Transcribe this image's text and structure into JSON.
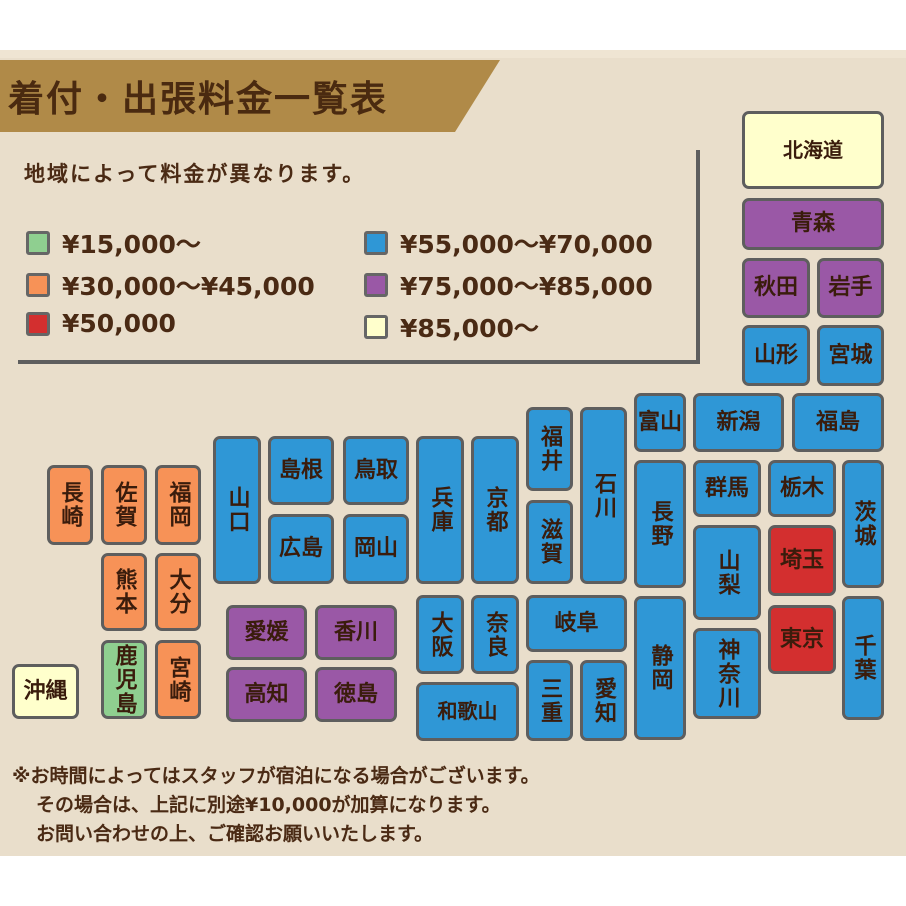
{
  "title": "着付・出張料金一覧表",
  "legend": {
    "note": "地域によって料金が異なります。",
    "items": [
      {
        "label": "¥15,000〜",
        "color": "#8fcf90"
      },
      {
        "label": "¥30,000〜¥45,000",
        "color": "#f79257"
      },
      {
        "label": "¥50,000",
        "color": "#d32f2f"
      },
      {
        "label": "¥55,000〜¥70,000",
        "color": "#2f97d6"
      },
      {
        "label": "¥75,000〜¥85,000",
        "color": "#9a58a6"
      },
      {
        "label": "¥85,000〜",
        "color": "#ffffcc"
      }
    ]
  },
  "prefectures": [
    {
      "name": "北海道",
      "tier": 5
    },
    {
      "name": "青森",
      "tier": 4
    },
    {
      "name": "秋田",
      "tier": 4
    },
    {
      "name": "岩手",
      "tier": 4
    },
    {
      "name": "山形",
      "tier": 3
    },
    {
      "name": "宮城",
      "tier": 3
    },
    {
      "name": "富山",
      "tier": 3
    },
    {
      "name": "新潟",
      "tier": 3
    },
    {
      "name": "福島",
      "tier": 3
    },
    {
      "name": "長野",
      "tier": 3
    },
    {
      "name": "群馬",
      "tier": 3
    },
    {
      "name": "栃木",
      "tier": 3
    },
    {
      "name": "茨城",
      "tier": 3
    },
    {
      "name": "山梨",
      "tier": 3
    },
    {
      "name": "埼玉",
      "tier": 2
    },
    {
      "name": "静岡",
      "tier": 3
    },
    {
      "name": "神奈川",
      "tier": 3
    },
    {
      "name": "東京",
      "tier": 2
    },
    {
      "name": "千葉",
      "tier": 3
    },
    {
      "name": "福井",
      "tier": 3
    },
    {
      "name": "石川",
      "tier": 3
    },
    {
      "name": "滋賀",
      "tier": 3
    },
    {
      "name": "兵庫",
      "tier": 3
    },
    {
      "name": "京都",
      "tier": 3
    },
    {
      "name": "大阪",
      "tier": 3
    },
    {
      "name": "奈良",
      "tier": 3
    },
    {
      "name": "和歌山",
      "tier": 3
    },
    {
      "name": "岐阜",
      "tier": 3
    },
    {
      "name": "三重",
      "tier": 3
    },
    {
      "name": "愛知",
      "tier": 3
    },
    {
      "name": "山口",
      "tier": 3
    },
    {
      "name": "島根",
      "tier": 3
    },
    {
      "name": "鳥取",
      "tier": 3
    },
    {
      "name": "広島",
      "tier": 3
    },
    {
      "name": "岡山",
      "tier": 3
    },
    {
      "name": "愛媛",
      "tier": 4
    },
    {
      "name": "香川",
      "tier": 4
    },
    {
      "name": "高知",
      "tier": 4
    },
    {
      "name": "徳島",
      "tier": 4
    },
    {
      "name": "長崎",
      "tier": 1
    },
    {
      "name": "佐賀",
      "tier": 1
    },
    {
      "name": "福岡",
      "tier": 1
    },
    {
      "name": "熊本",
      "tier": 1
    },
    {
      "name": "大分",
      "tier": 1
    },
    {
      "name": "鹿児島",
      "tier": 0
    },
    {
      "name": "宮崎",
      "tier": 1
    },
    {
      "name": "沖縄",
      "tier": 5
    }
  ],
  "footer": [
    "※お時間によってはスタッフが宿泊になる場合がございます。",
    "その場合は、上記に別途¥10,000が加算になります。",
    "お問い合わせの上、ご確認お願いいたします。"
  ]
}
